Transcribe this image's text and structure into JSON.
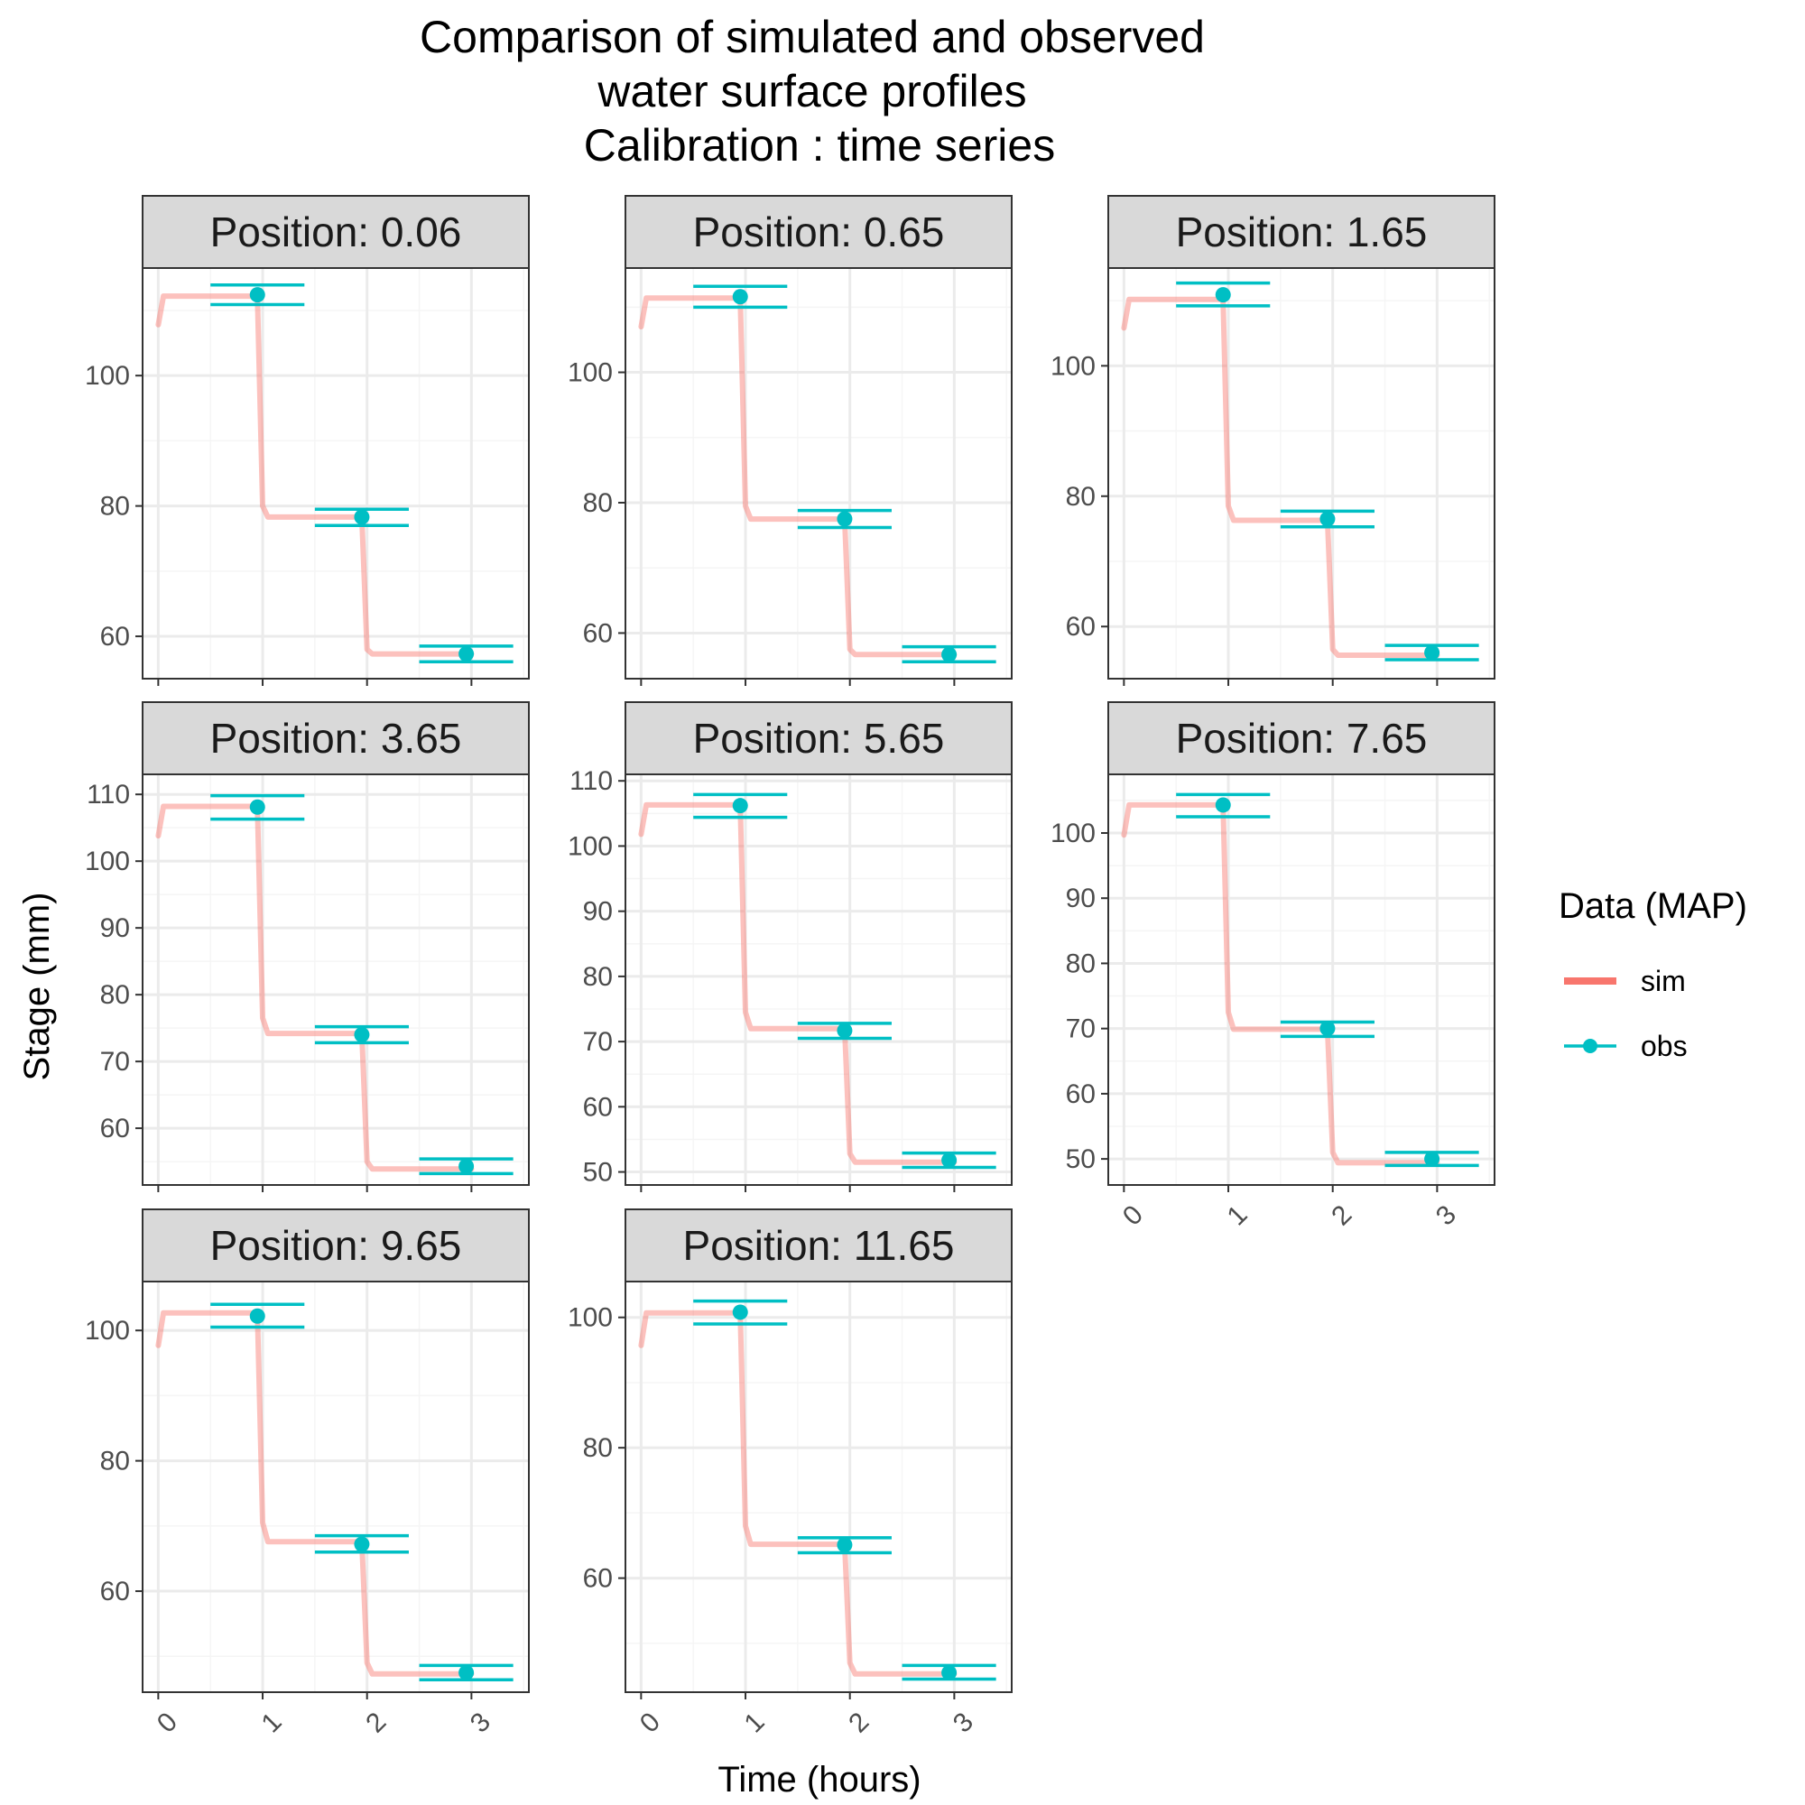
{
  "colors": {
    "sim": "#F8766D",
    "obs": "#00BFC4",
    "panel_border": "#333333",
    "strip_fill": "#D9D9D9",
    "grid_major": "#EBEBEB",
    "grid_minor": "#F5F5F5"
  },
  "chart_data": {
    "type": "line",
    "title_lines": [
      "Comparison of simulated and observed",
      "water surface profiles",
      "Calibration : time series"
    ],
    "xlabel": "Time (hours)",
    "ylabel": "Stage (mm)",
    "x_ticks": [
      0,
      1,
      2,
      3
    ],
    "x_tick_labels": [
      "0",
      "1",
      "2",
      "3"
    ],
    "xlim": [
      -0.15,
      3.55
    ],
    "legend": {
      "title": "Data (MAP)",
      "position": "right",
      "entries": [
        {
          "key": "sim",
          "label": "sim"
        },
        {
          "key": "obs",
          "label": "obs"
        }
      ]
    },
    "obs_times": [
      0.95,
      1.95,
      2.95
    ],
    "obs_error_halfwidth_time": 0.45,
    "panels": [
      {
        "label": "Position:  0.06",
        "ylim": [
          53.5,
          116.5
        ],
        "y_ticks": [
          60,
          80,
          100
        ],
        "y_minor": [
          50,
          70,
          90,
          110
        ],
        "sim": [
          [
            0,
            107.8
          ],
          [
            0.05,
            112.2
          ],
          [
            0.95,
            112.2
          ],
          [
            1.0,
            80.0
          ],
          [
            1.05,
            78.3
          ],
          [
            1.95,
            78.3
          ],
          [
            2.0,
            58.0
          ],
          [
            2.05,
            57.3
          ],
          [
            3.0,
            57.3
          ]
        ],
        "obs": [
          112.4,
          78.3,
          57.3
        ],
        "obs_err": [
          [
            110.9,
            113.9
          ],
          [
            77.0,
            79.5
          ],
          [
            56.1,
            58.5
          ]
        ]
      },
      {
        "label": "Position:  0.65",
        "ylim": [
          53,
          116
        ],
        "y_ticks": [
          60,
          80,
          100
        ],
        "y_minor": [
          50,
          70,
          90,
          110
        ],
        "sim": [
          [
            0,
            107.0
          ],
          [
            0.05,
            111.4
          ],
          [
            0.95,
            111.4
          ],
          [
            1.0,
            79.5
          ],
          [
            1.05,
            77.5
          ],
          [
            1.95,
            77.5
          ],
          [
            2.0,
            57.5
          ],
          [
            2.05,
            56.7
          ],
          [
            3.0,
            56.7
          ]
        ],
        "obs": [
          111.6,
          77.5,
          56.7
        ],
        "obs_err": [
          [
            110.0,
            113.2
          ],
          [
            76.2,
            78.8
          ],
          [
            55.6,
            57.9
          ]
        ]
      },
      {
        "label": "Position:  1.65",
        "ylim": [
          52,
          115
        ],
        "y_ticks": [
          60,
          80,
          100
        ],
        "y_minor": [
          50,
          70,
          90,
          110
        ],
        "sim": [
          [
            0,
            105.8
          ],
          [
            0.05,
            110.2
          ],
          [
            0.95,
            110.2
          ],
          [
            1.0,
            78.5
          ],
          [
            1.05,
            76.3
          ],
          [
            1.95,
            76.3
          ],
          [
            2.0,
            56.5
          ],
          [
            2.05,
            55.6
          ],
          [
            3.0,
            55.6
          ]
        ],
        "obs": [
          110.9,
          76.5,
          56.0
        ],
        "obs_err": [
          [
            109.2,
            112.7
          ],
          [
            75.3,
            77.7
          ],
          [
            54.9,
            57.1
          ]
        ]
      },
      {
        "label": "Position:  3.65",
        "ylim": [
          51.5,
          113
        ],
        "y_ticks": [
          60,
          70,
          80,
          90,
          100,
          110
        ],
        "y_minor": [
          55,
          65,
          75,
          85,
          95,
          105
        ],
        "sim": [
          [
            0,
            103.8
          ],
          [
            0.05,
            108.2
          ],
          [
            0.95,
            108.2
          ],
          [
            1.0,
            76.5
          ],
          [
            1.05,
            74.2
          ],
          [
            1.95,
            74.2
          ],
          [
            2.0,
            55.0
          ],
          [
            2.05,
            53.9
          ],
          [
            3.0,
            53.9
          ]
        ],
        "obs": [
          108.1,
          74.0,
          54.3
        ],
        "obs_err": [
          [
            106.3,
            109.8
          ],
          [
            72.8,
            75.2
          ],
          [
            53.2,
            55.4
          ]
        ]
      },
      {
        "label": "Position:  5.65",
        "ylim": [
          48,
          111
        ],
        "y_ticks": [
          50,
          60,
          70,
          80,
          90,
          100,
          110
        ],
        "y_minor": [
          55,
          65,
          75,
          85,
          95,
          105
        ],
        "sim": [
          [
            0,
            101.8
          ],
          [
            0.05,
            106.3
          ],
          [
            0.95,
            106.3
          ],
          [
            1.0,
            74.5
          ],
          [
            1.05,
            72.0
          ],
          [
            1.95,
            72.0
          ],
          [
            2.0,
            52.8
          ],
          [
            2.05,
            51.5
          ],
          [
            3.0,
            51.5
          ]
        ],
        "obs": [
          106.2,
          71.7,
          51.8
        ],
        "obs_err": [
          [
            104.4,
            107.9
          ],
          [
            70.5,
            72.8
          ],
          [
            50.7,
            52.9
          ]
        ]
      },
      {
        "label": "Position:  7.65",
        "ylim": [
          46,
          109
        ],
        "y_ticks": [
          50,
          60,
          70,
          80,
          90,
          100
        ],
        "y_minor": [
          55,
          65,
          75,
          85,
          95,
          105
        ],
        "sim": [
          [
            0,
            99.7
          ],
          [
            0.05,
            104.3
          ],
          [
            0.95,
            104.3
          ],
          [
            1.0,
            72.5
          ],
          [
            1.05,
            69.9
          ],
          [
            1.95,
            69.9
          ],
          [
            2.0,
            51.0
          ],
          [
            2.05,
            49.4
          ],
          [
            3.0,
            49.4
          ]
        ],
        "obs": [
          104.3,
          70.0,
          50.0
        ],
        "obs_err": [
          [
            102.5,
            105.9
          ],
          [
            68.8,
            71.0
          ],
          [
            49.0,
            51.0
          ]
        ]
      },
      {
        "label": "Position:  9.65",
        "ylim": [
          44.5,
          107.5
        ],
        "y_ticks": [
          60,
          80,
          100
        ],
        "y_minor": [
          50,
          70,
          90
        ],
        "sim": [
          [
            0,
            97.7
          ],
          [
            0.05,
            102.7
          ],
          [
            0.95,
            102.7
          ],
          [
            1.0,
            70.5
          ],
          [
            1.05,
            67.6
          ],
          [
            1.95,
            67.6
          ],
          [
            2.0,
            49.0
          ],
          [
            2.05,
            47.3
          ],
          [
            3.0,
            47.3
          ]
        ],
        "obs": [
          102.2,
          67.2,
          47.5
        ],
        "obs_err": [
          [
            100.5,
            104.0
          ],
          [
            66.0,
            68.5
          ],
          [
            46.4,
            48.6
          ]
        ]
      },
      {
        "label": "Position:  11.65",
        "ylim": [
          42.5,
          105.5
        ],
        "y_ticks": [
          60,
          80,
          100
        ],
        "y_minor": [
          50,
          70,
          90
        ],
        "sim": [
          [
            0,
            95.7
          ],
          [
            0.05,
            100.7
          ],
          [
            0.95,
            100.7
          ],
          [
            1.0,
            68.0
          ],
          [
            1.05,
            65.2
          ],
          [
            1.95,
            65.2
          ],
          [
            2.0,
            47.0
          ],
          [
            2.05,
            45.3
          ],
          [
            3.0,
            45.3
          ]
        ],
        "obs": [
          100.8,
          65.1,
          45.5
        ],
        "obs_err": [
          [
            99.0,
            102.5
          ],
          [
            63.9,
            66.2
          ],
          [
            44.5,
            46.6
          ]
        ]
      }
    ]
  }
}
